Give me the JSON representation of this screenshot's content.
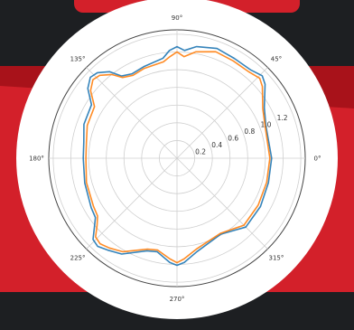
{
  "colors": {
    "background_dark": "#1d1f22",
    "banner_red": "#d3202a",
    "banner_red_dark": "#a8121a",
    "plot_face": "#ffffff",
    "grid": "#cfcfcf",
    "series_1": "#1f77b4",
    "series_2": "#ff7f0e"
  },
  "chart_data": {
    "type": "line",
    "projection": "polar",
    "title": "",
    "theta_ticks": [
      {
        "deg": 0,
        "label": "0°"
      },
      {
        "deg": 45,
        "label": "45°"
      },
      {
        "deg": 90,
        "label": "90°"
      },
      {
        "deg": 135,
        "label": "135°"
      },
      {
        "deg": 180,
        "label": "180°"
      },
      {
        "deg": 225,
        "label": "225°"
      },
      {
        "deg": 270,
        "label": "270°"
      },
      {
        "deg": 315,
        "label": "315°"
      }
    ],
    "r_ticks": [
      {
        "value": 0.2,
        "label": "0.2"
      },
      {
        "value": 0.4,
        "label": "0.4"
      },
      {
        "value": 0.6,
        "label": "0.6"
      },
      {
        "value": 0.8,
        "label": "0.8"
      },
      {
        "value": 1.0,
        "label": "1.0"
      },
      {
        "value": 1.2,
        "label": "1.2"
      }
    ],
    "rlim": [
      0,
      1.45
    ],
    "grid": true,
    "legend": "none",
    "series": [
      {
        "color": "#1f77b4",
        "points": [
          [
            0,
            1.07
          ],
          [
            20,
            1.07
          ],
          [
            30,
            1.14
          ],
          [
            40,
            1.3
          ],
          [
            44,
            1.34
          ],
          [
            50,
            1.3
          ],
          [
            60,
            1.3
          ],
          [
            70,
            1.32
          ],
          [
            80,
            1.28
          ],
          [
            86,
            1.22
          ],
          [
            90,
            1.26
          ],
          [
            94,
            1.22
          ],
          [
            98,
            1.14
          ],
          [
            110,
            1.1
          ],
          [
            118,
            1.08
          ],
          [
            124,
            1.12
          ],
          [
            128,
            1.24
          ],
          [
            133,
            1.32
          ],
          [
            137,
            1.34
          ],
          [
            142,
            1.28
          ],
          [
            148,
            1.14
          ],
          [
            160,
            1.12
          ],
          [
            170,
            1.07
          ],
          [
            180,
            1.06
          ],
          [
            195,
            1.08
          ],
          [
            210,
            1.12
          ],
          [
            216,
            1.14
          ],
          [
            220,
            1.22
          ],
          [
            224,
            1.32
          ],
          [
            228,
            1.34
          ],
          [
            233,
            1.3
          ],
          [
            240,
            1.25
          ],
          [
            252,
            1.1
          ],
          [
            258,
            1.08
          ],
          [
            266,
            1.18
          ],
          [
            270,
            1.21
          ],
          [
            274,
            1.18
          ],
          [
            282,
            1.08
          ],
          [
            300,
            0.99
          ],
          [
            315,
            1.1
          ],
          [
            330,
            1.09
          ],
          [
            345,
            1.07
          ],
          [
            360,
            1.07
          ]
        ]
      },
      {
        "color": "#ff7f0e",
        "points": [
          [
            0,
            1.05
          ],
          [
            20,
            1.06
          ],
          [
            30,
            1.12
          ],
          [
            40,
            1.26
          ],
          [
            44,
            1.3
          ],
          [
            50,
            1.27
          ],
          [
            60,
            1.27
          ],
          [
            70,
            1.28
          ],
          [
            80,
            1.22
          ],
          [
            86,
            1.15
          ],
          [
            90,
            1.2
          ],
          [
            94,
            1.15
          ],
          [
            98,
            1.1
          ],
          [
            110,
            1.08
          ],
          [
            118,
            1.06
          ],
          [
            124,
            1.1
          ],
          [
            128,
            1.2
          ],
          [
            133,
            1.28
          ],
          [
            137,
            1.3
          ],
          [
            142,
            1.24
          ],
          [
            148,
            1.1
          ],
          [
            160,
            1.08
          ],
          [
            170,
            1.04
          ],
          [
            180,
            1.03
          ],
          [
            195,
            1.06
          ],
          [
            210,
            1.09
          ],
          [
            216,
            1.11
          ],
          [
            220,
            1.18
          ],
          [
            224,
            1.28
          ],
          [
            228,
            1.3
          ],
          [
            233,
            1.27
          ],
          [
            240,
            1.22
          ],
          [
            252,
            1.08
          ],
          [
            258,
            1.06
          ],
          [
            266,
            1.14
          ],
          [
            270,
            1.18
          ],
          [
            274,
            1.14
          ],
          [
            282,
            1.05
          ],
          [
            300,
            0.98
          ],
          [
            315,
            1.07
          ],
          [
            330,
            1.06
          ],
          [
            345,
            1.05
          ],
          [
            360,
            1.05
          ]
        ]
      }
    ]
  }
}
